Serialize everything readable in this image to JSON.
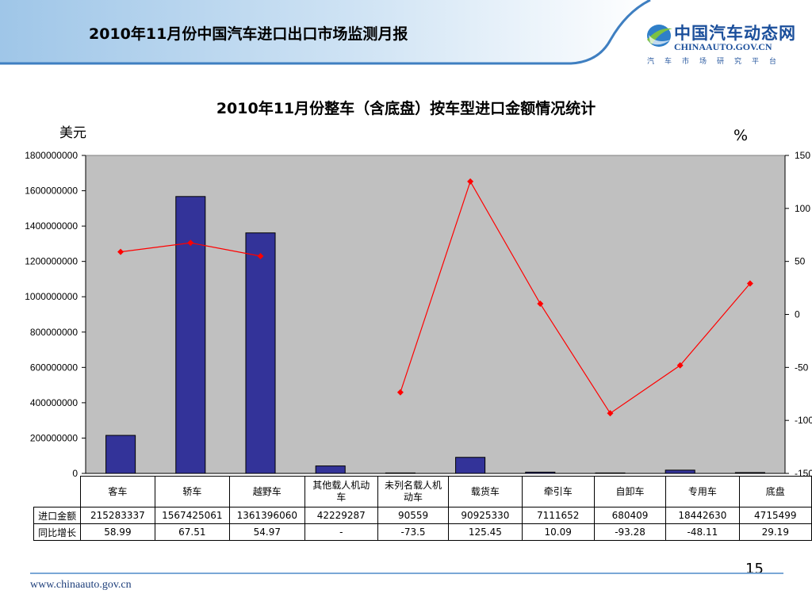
{
  "header": {
    "title": "2010年11月份中国汽车进口出口市场监测月报"
  },
  "logo": {
    "name": "中国汽车动态网",
    "domain": "CHINAAUTO.GOV.CN",
    "tagline": "汽车市场研究平台"
  },
  "chart_data": {
    "type": "bar",
    "title": "2010年11月份整车（含底盘）按车型进口金额情况统计",
    "ylabel": "美元",
    "y2label": "%",
    "categories": [
      "客车",
      "轿车",
      "越野车",
      "其他载人机动车",
      "未列名载人机动车",
      "载货车",
      "牵引车",
      "自卸车",
      "专用车",
      "底盘"
    ],
    "ylim": [
      0,
      1800000000
    ],
    "y2lim": [
      -150,
      150
    ],
    "yticks": [
      "0",
      "200000000",
      "400000000",
      "600000000",
      "800000000",
      "1000000000",
      "1200000000",
      "1400000000",
      "1600000000",
      "1800000000"
    ],
    "y2ticks": [
      "-150",
      "-100",
      "-50",
      "0",
      "50",
      "100",
      "150"
    ],
    "series": [
      {
        "name": "进口金额",
        "type": "bar",
        "color": "#333399",
        "values": [
          215283337,
          1567425061,
          1361396060,
          42229287,
          90559,
          90925330,
          7111652,
          680409,
          18442630,
          4715499
        ],
        "labels": [
          "215283337",
          "1567425061",
          "1361396060",
          "42229287",
          "90559",
          "90925330",
          "7111652",
          "680409",
          "18442630",
          "4715499"
        ]
      },
      {
        "name": "同比增长",
        "type": "line",
        "axis": "right",
        "color": "#ff0000",
        "values": [
          58.99,
          67.51,
          54.97,
          null,
          -73.5,
          125.45,
          10.09,
          -93.28,
          -48.11,
          29.19
        ],
        "labels": [
          "58.99",
          "67.51",
          "54.97",
          "-",
          "-73.5",
          "125.45",
          "10.09",
          "-93.28",
          "-48.11",
          "29.19"
        ]
      }
    ],
    "plot_background": "#c0c0c0"
  },
  "footer": {
    "url": "www.chinaauto.gov.cn",
    "page": "15"
  }
}
